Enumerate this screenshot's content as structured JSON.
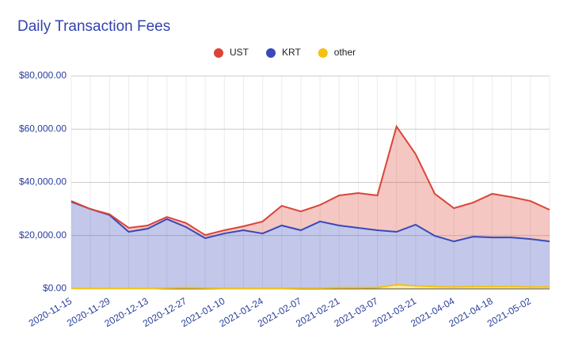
{
  "chart_data": {
    "type": "stacked_area",
    "title": "Daily Transaction Fees",
    "categories": [
      "2020-11-15",
      null,
      "2020-11-29",
      null,
      "2020-12-13",
      null,
      "2020-12-27",
      null,
      "2021-01-10",
      null,
      "2021-01-24",
      null,
      "2021-02-07",
      null,
      "2021-02-21",
      null,
      "2021-03-07",
      null,
      "2021-03-21",
      null,
      "2021-04-04",
      null,
      "2021-04-18",
      null,
      "2021-05-02",
      null
    ],
    "series": [
      {
        "name": "UST",
        "color": "#db4437",
        "values": [
          300,
          0,
          300,
          1500,
          1200,
          800,
          1500,
          1200,
          1200,
          1500,
          4500,
          7400,
          7100,
          6200,
          11300,
          13100,
          13100,
          39600,
          26500,
          15800,
          12500,
          12800,
          16400,
          15200,
          14300,
          11900
        ]
      },
      {
        "name": "KRT",
        "color": "#3949b8",
        "values": [
          32600,
          29900,
          27600,
          21300,
          22500,
          25900,
          22800,
          18700,
          20600,
          21800,
          20600,
          23600,
          21700,
          25000,
          23400,
          22500,
          21500,
          19900,
          23000,
          19100,
          17100,
          18800,
          18500,
          18500,
          18000,
          17100
        ]
      },
      {
        "name": "other",
        "color": "#f4c20d",
        "values": [
          100,
          100,
          100,
          100,
          100,
          300,
          400,
          300,
          200,
          200,
          200,
          200,
          300,
          300,
          400,
          400,
          500,
          1500,
          1100,
          800,
          700,
          800,
          800,
          800,
          700,
          700
        ]
      }
    ],
    "ylim": [
      0,
      80000
    ],
    "yticks": [
      {
        "value": 0,
        "label": "$0.00"
      },
      {
        "value": 20000,
        "label": "$20,000.00"
      },
      {
        "value": 40000,
        "label": "$40,000.00"
      },
      {
        "value": 60000,
        "label": "$60,000.00"
      },
      {
        "value": 80000,
        "label": "$80,000.00"
      }
    ],
    "grid": true,
    "legend": "top"
  }
}
